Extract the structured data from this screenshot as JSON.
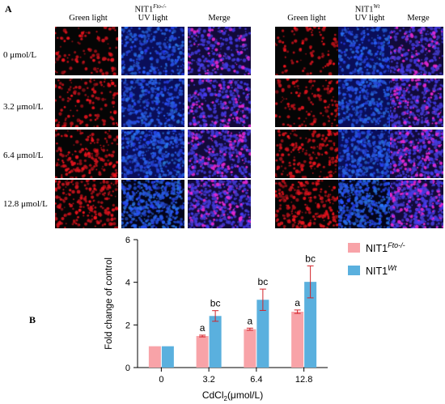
{
  "panel_a": {
    "letter": "A",
    "group_left": {
      "name": "NIT1",
      "sup": "Fto-/-"
    },
    "group_right": {
      "name": "NIT1",
      "sup": "Wt"
    },
    "columns": [
      "Green light",
      "UV light",
      "Merge"
    ],
    "rows": [
      "0 μmol/L",
      "3.2 μmol/L",
      "6.4 μmol/L",
      "12.8 μmol/L"
    ]
  },
  "panel_b": {
    "letter": "B"
  },
  "chart_data": {
    "type": "bar",
    "categories": [
      "0",
      "3.2",
      "6.4",
      "12.8"
    ],
    "xlabel": "CdCl2(μmol/L)",
    "ylabel": "Fold change of control",
    "ylim": [
      0,
      6
    ],
    "yticks": [
      "0",
      "2",
      "4",
      "6"
    ],
    "legend_position": "top-right",
    "series": [
      {
        "name": "NIT1Fto-/-",
        "legend_base": "NIT1",
        "legend_sup": "Fto-/-",
        "color": "#F8A3A8",
        "values": [
          1.0,
          1.48,
          1.8,
          2.62
        ],
        "errors": [
          0,
          0.04,
          0.05,
          0.08
        ],
        "labels": [
          "",
          "a",
          "a",
          "a"
        ]
      },
      {
        "name": "NIT1Wt",
        "legend_base": "NIT1",
        "legend_sup": "Wt",
        "color": "#5AB0DE",
        "values": [
          1.0,
          2.42,
          3.18,
          4.02
        ],
        "errors": [
          0,
          0.25,
          0.5,
          0.75
        ],
        "labels": [
          "",
          "bc",
          "bc",
          "bc"
        ]
      }
    ]
  }
}
